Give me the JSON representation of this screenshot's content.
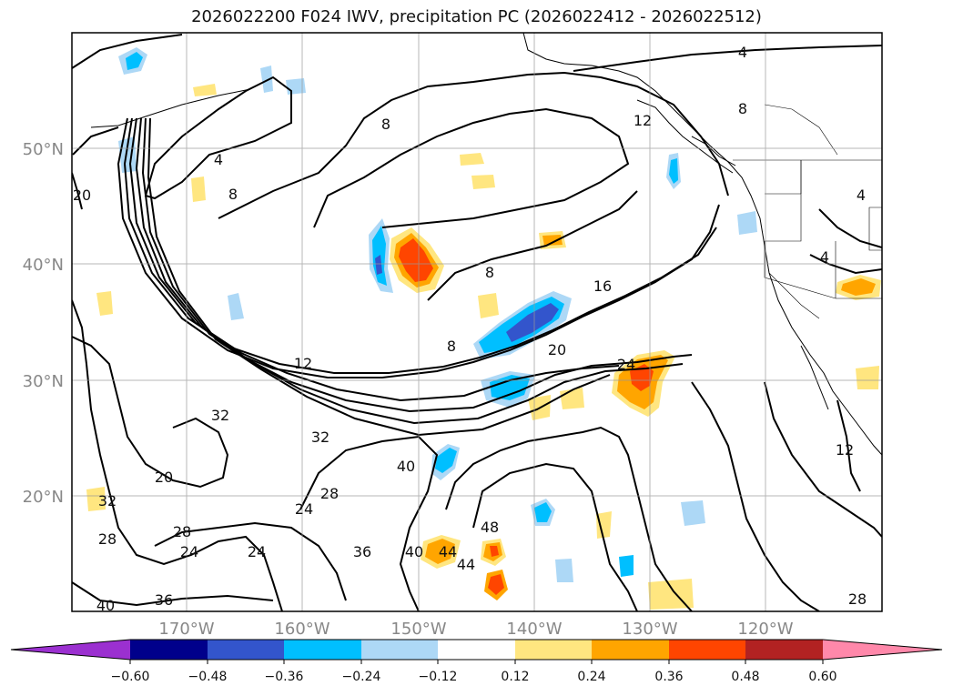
{
  "title": "2026022200 F024 IWV, precipitation PC (2026022412 - 2026022512)",
  "map": {
    "extent": {
      "lon_min": -180,
      "lon_max": -110,
      "lat_min": 10,
      "lat_max": 60
    },
    "gridlines": true,
    "lat_labels": [
      "50°N",
      "40°N",
      "30°N",
      "20°N"
    ],
    "lon_labels": [
      "170°W",
      "160°W",
      "150°W",
      "140°W",
      "130°W",
      "120°W"
    ],
    "contour_labels": [
      "4",
      "8",
      "12",
      "8",
      "4",
      "8",
      "12",
      "16",
      "20",
      "24",
      "32",
      "20",
      "28",
      "24",
      "24",
      "28",
      "32",
      "36",
      "40",
      "44",
      "48",
      "40",
      "44",
      "40",
      "36",
      "32",
      "24",
      "20",
      "28",
      "8",
      "8",
      "4",
      "4",
      "12",
      "28"
    ]
  },
  "colorbar": {
    "ticks": [
      "−0.60",
      "−0.48",
      "−0.36",
      "−0.24",
      "−0.12",
      "0.12",
      "0.24",
      "0.36",
      "0.48",
      "0.60"
    ],
    "colors": [
      "#9b30d0",
      "#00008b",
      "#3355cc",
      "#00bfff",
      "#add8f6",
      "#ffffff",
      "#ffe680",
      "#ffa500",
      "#ff4500",
      "#b22222",
      "#ff88aa"
    ]
  }
}
